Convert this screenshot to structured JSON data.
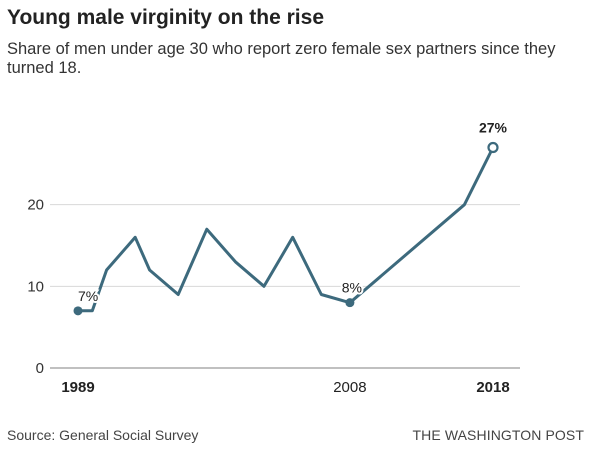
{
  "header": {
    "title": "Young male virginity on the rise",
    "subtitle": "Share of men under age 30 who report zero female sex partners since they turned 18."
  },
  "chart_data": {
    "type": "line",
    "title": "Young male virginity on the rise",
    "subtitle": "Share of men under age 30 who report zero female sex partners since they turned 18.",
    "xlabel": "",
    "ylabel": "",
    "xlim": [
      1989,
      2018
    ],
    "ylim": [
      0,
      30
    ],
    "y_ticks": [
      0,
      10,
      20
    ],
    "x_ticks": [
      {
        "value": 1989,
        "label": "1989",
        "bold": true
      },
      {
        "value": 2008,
        "label": "2008",
        "bold": false
      },
      {
        "value": 2018,
        "label": "2018",
        "bold": true
      }
    ],
    "grid": true,
    "series": [
      {
        "color": "#3d6a7d",
        "x": [
          1989,
          1990,
          1991,
          1993,
          1994,
          1996,
          1998,
          2000,
          2002,
          2004,
          2006,
          2008,
          2016,
          2018
        ],
        "y": [
          7,
          7,
          12,
          16,
          12,
          9,
          17,
          13,
          10,
          16,
          9,
          8,
          20,
          27
        ]
      }
    ],
    "annotations": [
      {
        "x": 1989,
        "y": 7,
        "label": "7%",
        "marker": "filled",
        "bold": false
      },
      {
        "x": 2008,
        "y": 8,
        "label": "8%",
        "marker": "filled",
        "bold": false
      },
      {
        "x": 2018,
        "y": 27,
        "label": "27%",
        "marker": "hollow",
        "bold": true
      }
    ]
  },
  "footer": {
    "source": "Source: General Social Survey",
    "credit": "THE WASHINGTON POST"
  }
}
